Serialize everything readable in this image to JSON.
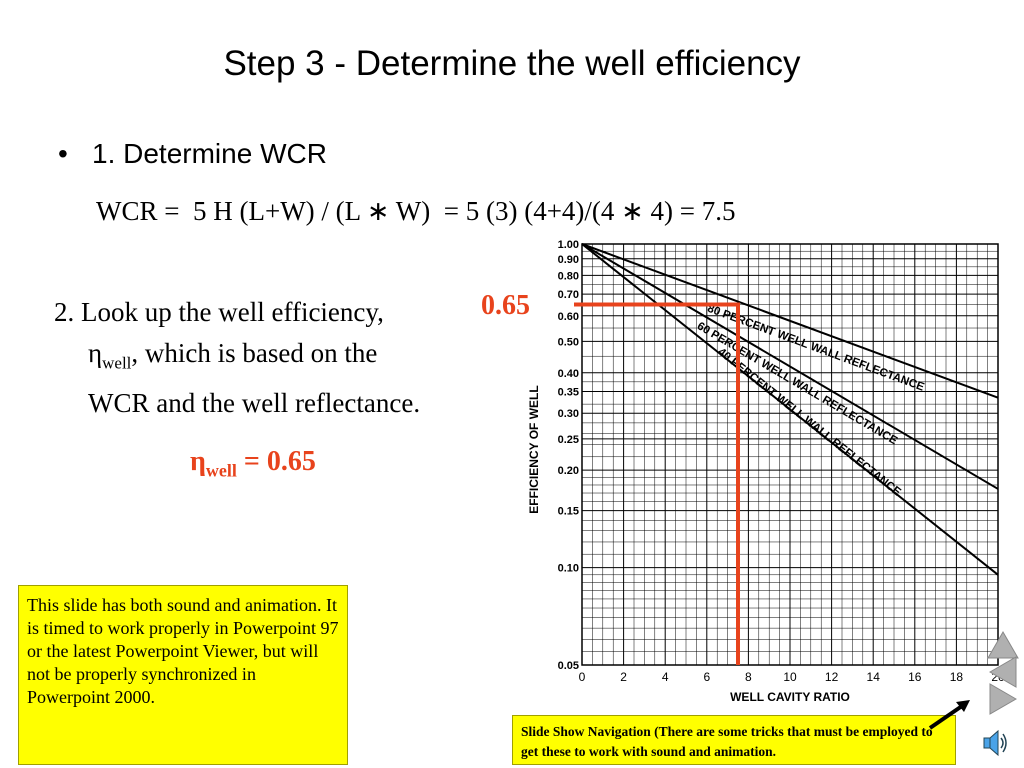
{
  "slide": {
    "title": "Step 3 - Determine the well efficiency",
    "bullet": {
      "marker": "•",
      "text": "1. Determine WCR"
    },
    "formula": "WCR =  5 H (L+W) / (L ∗ W)  = 5 (3) (4+4)/(4 ∗ 4) = 7.5",
    "lookup": {
      "line1": "2. Look up the well efficiency,",
      "eta": "η",
      "well_sub": "well",
      "line2_rest": ", which is based on the",
      "line3": "WCR and the well reflectance."
    },
    "efficiency_label": "0.65",
    "eta_result": {
      "eta": "η",
      "sub": "well",
      "value": " = 0.65"
    },
    "note": "This slide has both sound and animation.  It is timed to work properly in Powerpoint 97 or the latest Powerpoint Viewer, but will not be properly synchronized in Powerpoint 2000.",
    "nav_note": "Slide Show Navigation (There are some tricks that must be employed to get these to work with sound and animation.",
    "colors": {
      "highlight": "#e8431c",
      "note_bg": "#ffff00",
      "nav_button": "#b0b0b0"
    },
    "nav_icons": [
      "up-triangle-icon",
      "left-triangle-icon",
      "right-triangle-icon",
      "arrow-icon",
      "speaker-icon"
    ]
  },
  "chart_data": {
    "type": "line",
    "xlabel": "WELL CAVITY RATIO",
    "ylabel": "EFFICIENCY OF WELL",
    "xlim": [
      0,
      20
    ],
    "ylim": [
      0.05,
      1.0
    ],
    "yscale": "log",
    "grid": true,
    "x_ticks": [
      0,
      2,
      4,
      6,
      8,
      10,
      12,
      14,
      16,
      18,
      20
    ],
    "x_tick_labels": [
      "0",
      "2",
      "4",
      "6",
      "8",
      "10",
      "12",
      "14",
      "16",
      "18",
      "20"
    ],
    "y_ticks": [
      1.0,
      0.9,
      0.8,
      0.7,
      0.6,
      0.5,
      0.4,
      0.35,
      0.3,
      0.25,
      0.2,
      0.15,
      0.1,
      0.05
    ],
    "y_tick_labels": [
      "1.00",
      "0.90",
      "0.80",
      "0.70",
      "0.60",
      "0.50",
      "0.40",
      "0.35",
      "0.30",
      "0.25",
      "0.20",
      "0.15",
      "0.10",
      "0.05"
    ],
    "series": [
      {
        "name": "80 PERCENT WELL WALL REFLECTANCE",
        "x": [
          0,
          20
        ],
        "y": [
          1.0,
          0.335
        ],
        "label_x": 6,
        "label_y": 0.62
      },
      {
        "name": "60 PERCENT WELL WALL REFLECTANCE",
        "x": [
          0,
          20
        ],
        "y": [
          1.0,
          0.175
        ],
        "label_x": 5.5,
        "label_y": 0.55
      },
      {
        "name": "40 PERCENT WELL WALL REFLECTANCE",
        "x": [
          0,
          20
        ],
        "y": [
          1.0,
          0.095
        ],
        "label_x": 6.5,
        "label_y": 0.46
      }
    ],
    "annotation": {
      "x": 7.5,
      "y": 0.65,
      "color": "#e8431c"
    }
  }
}
